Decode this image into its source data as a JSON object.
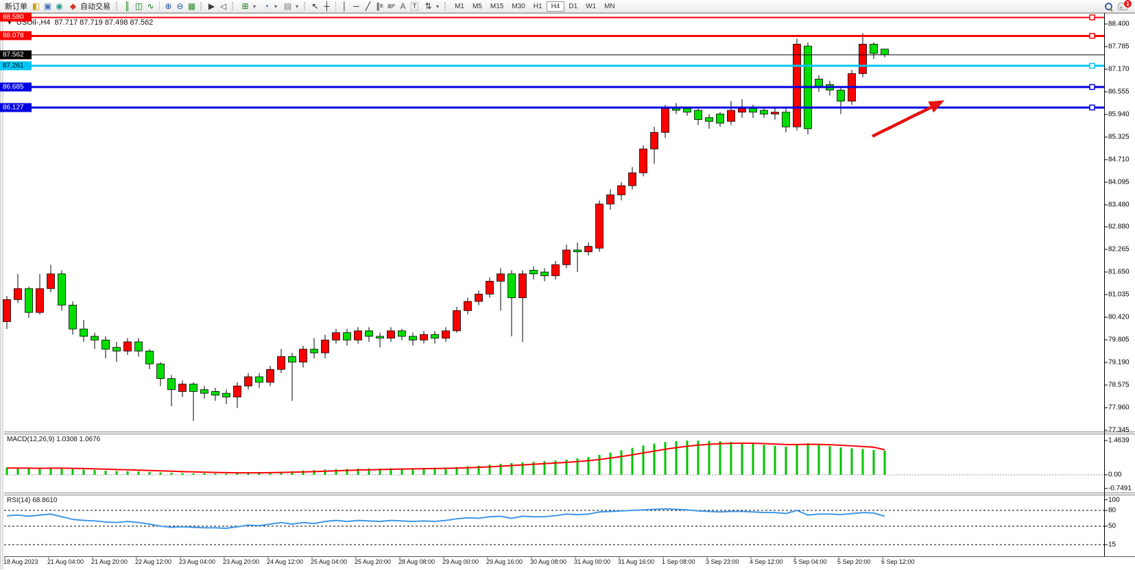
{
  "toolbar": {
    "new_order_label": "新订单",
    "autotrading_label": "自动交易",
    "timeframes": [
      "M1",
      "M5",
      "M15",
      "M30",
      "H1",
      "H4",
      "D1",
      "W1",
      "MN"
    ],
    "active_timeframe": "H4",
    "notification_badge": "1",
    "glyphs": {
      "charts": "◧",
      "profiles": "▣",
      "data_window": "◉",
      "autotrading": "◆",
      "bar_chart": "║",
      "candles": "◫",
      "line_chart": "∿",
      "zoom_in": "⊕",
      "zoom_out": "⊖",
      "tile": "▦",
      "auto_scroll": "▶",
      "chart_shift": "◁",
      "indicators_add": "⊞",
      "periods": "◔",
      "templates": "▤",
      "cursor": "↖",
      "crosshair": "┼",
      "vline": "│",
      "hline": "─",
      "trendline": "╱",
      "channel": "∥",
      "channel_sub": "E",
      "fibo": "≡",
      "fibo_sub": "F",
      "text": "A",
      "text_label": "T",
      "arrows": "⇅",
      "caret": "▾"
    }
  },
  "chart_header": {
    "collapse_arrow": "▼",
    "symbol_period": "USOil-,H4",
    "ohlc_line": "87.717 87.719 87.498 87.562"
  },
  "price_axis": {
    "ticks": [
      "88.400",
      "87.785",
      "87.170",
      "86.555",
      "85.940",
      "85.325",
      "84.710",
      "84.095",
      "83.480",
      "82.880",
      "82.265",
      "81.650",
      "81.035",
      "80.420",
      "79.805",
      "79.190",
      "78.575",
      "77.960",
      "77.345"
    ]
  },
  "hlines": [
    {
      "price": 88.58,
      "label": "88.580",
      "color": "#F80000",
      "width": 2,
      "label_bg": "#F80000",
      "label_fg": "#FFFFFF",
      "left_marker": true,
      "right_marker": true
    },
    {
      "price": 88.078,
      "label": "88.078",
      "color": "#F80000",
      "width": 3,
      "label_bg": "#F80000",
      "label_fg": "#FFFFFF",
      "right_marker": true
    },
    {
      "price": 87.562,
      "label": "87.562",
      "color": "#000000",
      "width": 1,
      "label_bg": "#000000",
      "label_fg": "#FFFFFF"
    },
    {
      "price": 87.261,
      "label": "87.261",
      "color": "#00C6F5",
      "width": 3,
      "label_bg": "#00C6F5",
      "label_fg": "#000000",
      "right_marker": true
    },
    {
      "price": 86.685,
      "label": "86.685",
      "color": "#0000E0",
      "width": 3,
      "label_bg": "#0000E0",
      "label_fg": "#FFFFFF",
      "right_marker": true
    },
    {
      "price": 86.127,
      "label": "86.127",
      "color": "#0000E0",
      "width": 3,
      "label_bg": "#0000E0",
      "label_fg": "#FFFFFF",
      "right_marker": true
    }
  ],
  "macd_panel": {
    "label": "MACD(12,26,9) 1.0308 1.0676",
    "ticks": [
      {
        "text": "1.4639",
        "value": 1.4639
      },
      {
        "text": "0.00",
        "value": 0.0
      },
      {
        "text": "-0.7491",
        "value": -0.7491
      }
    ]
  },
  "rsi_panel": {
    "label": "RSI(14) 68.8610",
    "ticks": [
      {
        "text": "100",
        "value": 100
      },
      {
        "text": "80",
        "value": 80
      },
      {
        "text": "50",
        "value": 50
      },
      {
        "text": "15",
        "value": 15
      }
    ],
    "levels": [
      80,
      50,
      15
    ]
  },
  "annotation": {
    "type": "arrow",
    "color": "#E51212"
  },
  "colors": {
    "bull": "#FE0000",
    "bear": "#00DE00",
    "wick": "#000000",
    "macd_hist": "#00C400",
    "macd_signal": "#FF0000",
    "rsi_line": "#3D96E8",
    "axis": "#000000",
    "panel_border": "#808080"
  },
  "chart_data": {
    "type": "candlestick",
    "symbol": "USOil-",
    "timeframe": "H4",
    "title": "USOil-,H4 87.717 87.719 87.498 87.562",
    "last_ohlc": {
      "open": "87.717",
      "high": "87.719",
      "low": "87.498",
      "close": "87.562"
    },
    "ylim": [
      77.345,
      88.68
    ],
    "grid": false,
    "x_labels": [
      "18 Aug 2023",
      "21 Aug 04:00",
      "21 Aug 20:00",
      "22 Aug 12:00",
      "23 Aug 04:00",
      "23 Aug 20:00",
      "24 Aug 12:00",
      "25 Aug 04:00",
      "25 Aug 20:00",
      "28 Aug 08:00",
      "29 Aug 00:00",
      "29 Aug 16:00",
      "30 Aug 08:00",
      "31 Aug 00:00",
      "31 Aug 16:00",
      "1 Sep 08:00",
      "3 Sep 23:00",
      "4 Sep 12:00",
      "5 Sep 04:00",
      "5 Sep 20:00",
      "6 Sep 12:00"
    ],
    "candles_per_label": 4,
    "candles": [
      [
        80.3,
        81.0,
        80.1,
        80.9
      ],
      [
        80.9,
        81.6,
        80.8,
        81.2
      ],
      [
        81.2,
        81.25,
        80.4,
        80.55
      ],
      [
        80.55,
        81.6,
        80.5,
        81.2
      ],
      [
        81.2,
        81.85,
        81.1,
        81.6
      ],
      [
        81.6,
        81.7,
        80.6,
        80.75
      ],
      [
        80.75,
        80.85,
        79.95,
        80.1
      ],
      [
        80.1,
        80.35,
        79.75,
        79.9
      ],
      [
        79.9,
        80.0,
        79.55,
        79.8
      ],
      [
        79.8,
        79.9,
        79.3,
        79.55
      ],
      [
        79.6,
        79.75,
        79.2,
        79.5
      ],
      [
        79.5,
        79.85,
        79.4,
        79.75
      ],
      [
        79.75,
        79.85,
        79.35,
        79.5
      ],
      [
        79.5,
        79.55,
        79.0,
        79.15
      ],
      [
        79.15,
        79.2,
        78.55,
        78.75
      ],
      [
        78.75,
        78.85,
        78.0,
        78.45
      ],
      [
        78.4,
        78.7,
        78.25,
        78.6
      ],
      [
        78.6,
        78.65,
        77.6,
        78.4
      ],
      [
        78.45,
        78.55,
        78.2,
        78.35
      ],
      [
        78.4,
        78.5,
        78.15,
        78.3
      ],
      [
        78.35,
        78.45,
        78.05,
        78.25
      ],
      [
        78.25,
        78.65,
        77.95,
        78.55
      ],
      [
        78.55,
        78.9,
        78.45,
        78.8
      ],
      [
        78.8,
        78.9,
        78.5,
        78.65
      ],
      [
        78.65,
        79.1,
        78.55,
        79.0
      ],
      [
        79.0,
        79.55,
        78.9,
        79.35
      ],
      [
        79.35,
        79.45,
        78.15,
        79.2
      ],
      [
        79.2,
        79.65,
        79.05,
        79.55
      ],
      [
        79.55,
        79.85,
        79.3,
        79.45
      ],
      [
        79.45,
        79.95,
        79.3,
        79.8
      ],
      [
        79.8,
        80.1,
        79.7,
        80.0
      ],
      [
        80.0,
        80.1,
        79.65,
        79.8
      ],
      [
        79.8,
        80.15,
        79.7,
        80.05
      ],
      [
        80.05,
        80.15,
        79.75,
        79.9
      ],
      [
        79.9,
        80.0,
        79.6,
        79.85
      ],
      [
        79.85,
        80.15,
        79.75,
        80.05
      ],
      [
        80.05,
        80.1,
        79.8,
        79.9
      ],
      [
        79.9,
        80.0,
        79.65,
        79.8
      ],
      [
        79.8,
        80.05,
        79.7,
        79.95
      ],
      [
        79.95,
        80.05,
        79.7,
        79.85
      ],
      [
        79.85,
        80.15,
        79.75,
        80.05
      ],
      [
        80.05,
        80.7,
        80.0,
        80.6
      ],
      [
        80.6,
        80.95,
        80.5,
        80.85
      ],
      [
        80.85,
        81.15,
        80.75,
        81.05
      ],
      [
        81.05,
        81.5,
        80.95,
        81.4
      ],
      [
        81.4,
        81.75,
        80.6,
        81.6
      ],
      [
        81.6,
        81.7,
        79.9,
        80.95
      ],
      [
        80.95,
        81.7,
        79.75,
        81.6
      ],
      [
        81.7,
        81.8,
        81.45,
        81.6
      ],
      [
        81.65,
        81.75,
        81.4,
        81.55
      ],
      [
        81.55,
        81.95,
        81.45,
        81.85
      ],
      [
        81.85,
        82.4,
        81.75,
        82.25
      ],
      [
        82.25,
        82.45,
        81.65,
        82.2
      ],
      [
        82.2,
        82.45,
        82.1,
        82.35
      ],
      [
        82.3,
        83.6,
        82.2,
        83.5
      ],
      [
        83.5,
        83.9,
        83.35,
        83.75
      ],
      [
        83.75,
        84.1,
        83.6,
        84.0
      ],
      [
        84.0,
        84.5,
        83.9,
        84.35
      ],
      [
        84.35,
        85.1,
        84.25,
        85.0
      ],
      [
        85.0,
        85.6,
        84.6,
        85.45
      ],
      [
        85.45,
        86.2,
        85.3,
        86.1
      ],
      [
        86.1,
        86.25,
        85.95,
        86.05
      ],
      [
        86.1,
        86.15,
        85.9,
        86.0
      ],
      [
        86.05,
        86.1,
        85.65,
        85.8
      ],
      [
        85.85,
        85.95,
        85.55,
        85.75
      ],
      [
        85.95,
        86.0,
        85.6,
        85.7
      ],
      [
        85.75,
        86.3,
        85.65,
        86.05
      ],
      [
        86.0,
        86.35,
        85.85,
        86.1
      ],
      [
        86.1,
        86.2,
        85.85,
        86.0
      ],
      [
        86.05,
        86.15,
        85.85,
        85.95
      ],
      [
        85.95,
        86.1,
        85.8,
        86.0
      ],
      [
        86.0,
        86.1,
        85.45,
        85.6
      ],
      [
        85.6,
        88.0,
        85.5,
        87.85
      ],
      [
        87.8,
        87.9,
        85.4,
        85.55
      ],
      [
        86.9,
        87.0,
        86.55,
        86.7
      ],
      [
        86.75,
        86.85,
        86.45,
        86.6
      ],
      [
        86.6,
        86.7,
        85.95,
        86.3
      ],
      [
        86.3,
        87.15,
        86.2,
        87.05
      ],
      [
        87.05,
        88.15,
        86.95,
        87.85
      ],
      [
        87.85,
        87.9,
        87.45,
        87.6
      ],
      [
        87.717,
        87.719,
        87.498,
        87.562
      ]
    ],
    "indicators": {
      "macd": {
        "params": "12,26,9",
        "current": "1.0308",
        "signal_current": "1.0676",
        "range": [
          -0.7491,
          1.4639
        ],
        "histogram": [
          0.3,
          0.28,
          0.26,
          0.27,
          0.3,
          0.28,
          0.25,
          0.22,
          0.2,
          0.18,
          0.16,
          0.15,
          0.14,
          0.12,
          0.1,
          0.08,
          0.07,
          0.06,
          0.06,
          0.05,
          0.05,
          0.06,
          0.08,
          0.09,
          0.11,
          0.13,
          0.15,
          0.18,
          0.2,
          0.22,
          0.24,
          0.25,
          0.26,
          0.27,
          0.27,
          0.28,
          0.28,
          0.28,
          0.29,
          0.3,
          0.31,
          0.33,
          0.36,
          0.39,
          0.43,
          0.47,
          0.5,
          0.53,
          0.56,
          0.58,
          0.61,
          0.65,
          0.7,
          0.76,
          0.85,
          0.95,
          1.05,
          1.15,
          1.25,
          1.33,
          1.4,
          1.44,
          1.46,
          1.46,
          1.45,
          1.43,
          1.4,
          1.37,
          1.33,
          1.28,
          1.24,
          1.2,
          1.3,
          1.35,
          1.28,
          1.22,
          1.17,
          1.13,
          1.1,
          1.06,
          1.0308
        ],
        "signal": [
          0.29,
          0.287,
          0.282,
          0.279,
          0.281,
          0.281,
          0.276,
          0.266,
          0.254,
          0.24,
          0.225,
          0.211,
          0.198,
          0.184,
          0.168,
          0.152,
          0.137,
          0.123,
          0.111,
          0.1,
          0.091,
          0.085,
          0.084,
          0.085,
          0.09,
          0.098,
          0.108,
          0.122,
          0.137,
          0.153,
          0.17,
          0.186,
          0.2,
          0.214,
          0.225,
          0.236,
          0.245,
          0.252,
          0.259,
          0.267,
          0.276,
          0.287,
          0.301,
          0.319,
          0.341,
          0.367,
          0.394,
          0.421,
          0.449,
          0.475,
          0.502,
          0.532,
          0.565,
          0.604,
          0.653,
          0.713,
          0.78,
          0.854,
          0.933,
          1.012,
          1.09,
          1.16,
          1.22,
          1.268,
          1.304,
          1.329,
          1.343,
          1.349,
          1.345,
          1.332,
          1.314,
          1.291,
          1.293,
          1.304,
          1.299,
          1.284,
          1.261,
          1.235,
          1.208,
          1.178,
          1.0676
        ]
      },
      "rsi": {
        "period": 14,
        "current": "68.8610",
        "levels": [
          80,
          50,
          15
        ],
        "range": [
          0,
          100
        ],
        "values": [
          70,
          71,
          69,
          71,
          73,
          68,
          63,
          61,
          60,
          58,
          57,
          59,
          57,
          54,
          50,
          48,
          49,
          48,
          47,
          47,
          46,
          49,
          52,
          51,
          54,
          57,
          54,
          57,
          55,
          59,
          61,
          59,
          61,
          60,
          59,
          61,
          60,
          59,
          60,
          59,
          61,
          64,
          66,
          65,
          68,
          69,
          65,
          69,
          68,
          68,
          70,
          73,
          72,
          73,
          77,
          78,
          79,
          80,
          81,
          82,
          83,
          82,
          81,
          79,
          78,
          77,
          78,
          78,
          77,
          76,
          76,
          74,
          80,
          71,
          73,
          73,
          72,
          74,
          76,
          75,
          68.861
        ]
      }
    }
  }
}
